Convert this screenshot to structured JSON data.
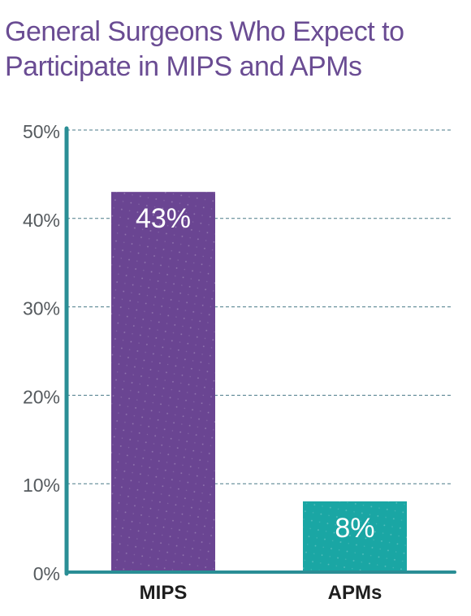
{
  "chart_data": {
    "type": "bar",
    "title": "General Surgeons Who Expect to Participate in MIPS and APMs",
    "title_lines": [
      "General Surgeons Who Expect to",
      "Participate in MIPS and APMs"
    ],
    "categories": [
      "MIPS",
      "APMs"
    ],
    "values": [
      43,
      8
    ],
    "data_labels": [
      "43%",
      "8%"
    ],
    "bar_colors": [
      "#6a4592",
      "#1aa6a4"
    ],
    "ylim": [
      0,
      50
    ],
    "yticks": [
      0,
      10,
      20,
      30,
      40,
      50
    ],
    "ytick_labels": [
      "0%",
      "10%",
      "20%",
      "30%",
      "40%",
      "50%"
    ],
    "grid": true,
    "xlabel": "",
    "ylabel": ""
  },
  "colors": {
    "title": "#6a4c93",
    "axis": "#2a8e95",
    "grid": "#4a7a88",
    "tick_text": "#555a5e",
    "category_text": "#1e1e1e",
    "data_label": "#ffffff"
  }
}
